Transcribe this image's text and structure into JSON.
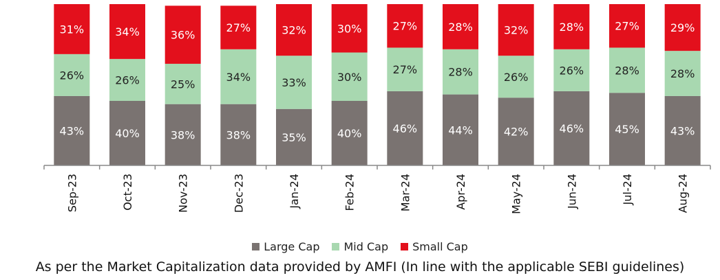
{
  "chart_data": {
    "type": "bar",
    "stacked": true,
    "normalized_percent": true,
    "categories": [
      "Sep-23",
      "Oct-23",
      "Nov-23",
      "Dec-23",
      "Jan-24",
      "Feb-24",
      "Mar-24",
      "Apr-24",
      "May-24",
      "Jun-24",
      "Jul-24",
      "Aug-24"
    ],
    "series": [
      {
        "name": "Large Cap",
        "color": "#7a7371",
        "values": [
          43,
          40,
          38,
          38,
          35,
          40,
          46,
          44,
          42,
          46,
          45,
          43
        ]
      },
      {
        "name": "Mid Cap",
        "color": "#a8d8b0",
        "values": [
          26,
          26,
          25,
          34,
          33,
          30,
          27,
          28,
          26,
          26,
          28,
          28
        ]
      },
      {
        "name": "Small Cap",
        "color": "#e3101c",
        "values": [
          31,
          34,
          36,
          27,
          32,
          30,
          27,
          28,
          32,
          28,
          27,
          29
        ]
      }
    ],
    "value_suffix": "%",
    "legend_position": "bottom",
    "grid": false,
    "ylim": [
      0,
      100
    ]
  },
  "footnote": "As per the Market Capitalization data provided by AMFI (In line with the applicable SEBI guidelines)"
}
